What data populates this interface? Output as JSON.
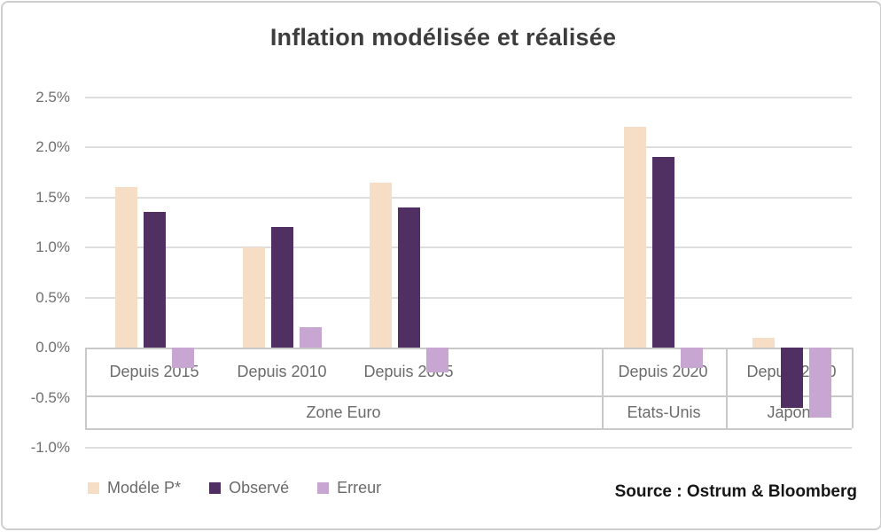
{
  "title": "Inflation modélisée et réalisée",
  "source": "Source : Ostrum & Bloomberg",
  "legend": {
    "items": [
      {
        "label": "Modéle P*",
        "color": "#f6ddc5"
      },
      {
        "label": "Observé",
        "color": "#503063"
      },
      {
        "label": "Erreur",
        "color": "#c7a7d2"
      }
    ]
  },
  "chart_data": {
    "type": "bar",
    "title": "Inflation modélisée et réalisée",
    "categories": [
      "Depuis 2015",
      "Depuis 2010",
      "Depuis 2005",
      "Depuis 2020",
      "Depuis 2020"
    ],
    "category_groups": [
      {
        "label": "Zone Euro",
        "categories": [
          "Depuis 2015",
          "Depuis 2010",
          "Depuis 2005"
        ]
      },
      {
        "label": "Etats-Unis",
        "categories": [
          "Depuis 2020"
        ]
      },
      {
        "label": "Japon",
        "categories": [
          "Depuis 2020"
        ]
      }
    ],
    "series": [
      {
        "name": "Modéle P*",
        "color": "#f6ddc5",
        "values": [
          1.6,
          1.0,
          1.65,
          2.2,
          0.1
        ]
      },
      {
        "name": "Observé",
        "color": "#503063",
        "values": [
          1.35,
          1.2,
          1.4,
          1.9,
          -0.6
        ]
      },
      {
        "name": "Erreur",
        "color": "#c7a7d2",
        "values": [
          -0.2,
          0.2,
          -0.25,
          -0.2,
          -0.7
        ]
      }
    ],
    "unit": "%",
    "ylim": [
      -1.0,
      2.5
    ],
    "ytick_step": 0.5,
    "yticks": [
      "2.5%",
      "2.0%",
      "1.5%",
      "1.0%",
      "0.5%",
      "0.0%",
      "-0.5%",
      "-1.0%"
    ],
    "grid": true,
    "legend_position": "bottom-left",
    "source": "Source : Ostrum & Bloomberg"
  },
  "colors": {
    "grid": "#dddddd",
    "table_border": "#c9c9c9",
    "axis_text": "#6f6f6f",
    "title_text": "#3d3d3d"
  }
}
